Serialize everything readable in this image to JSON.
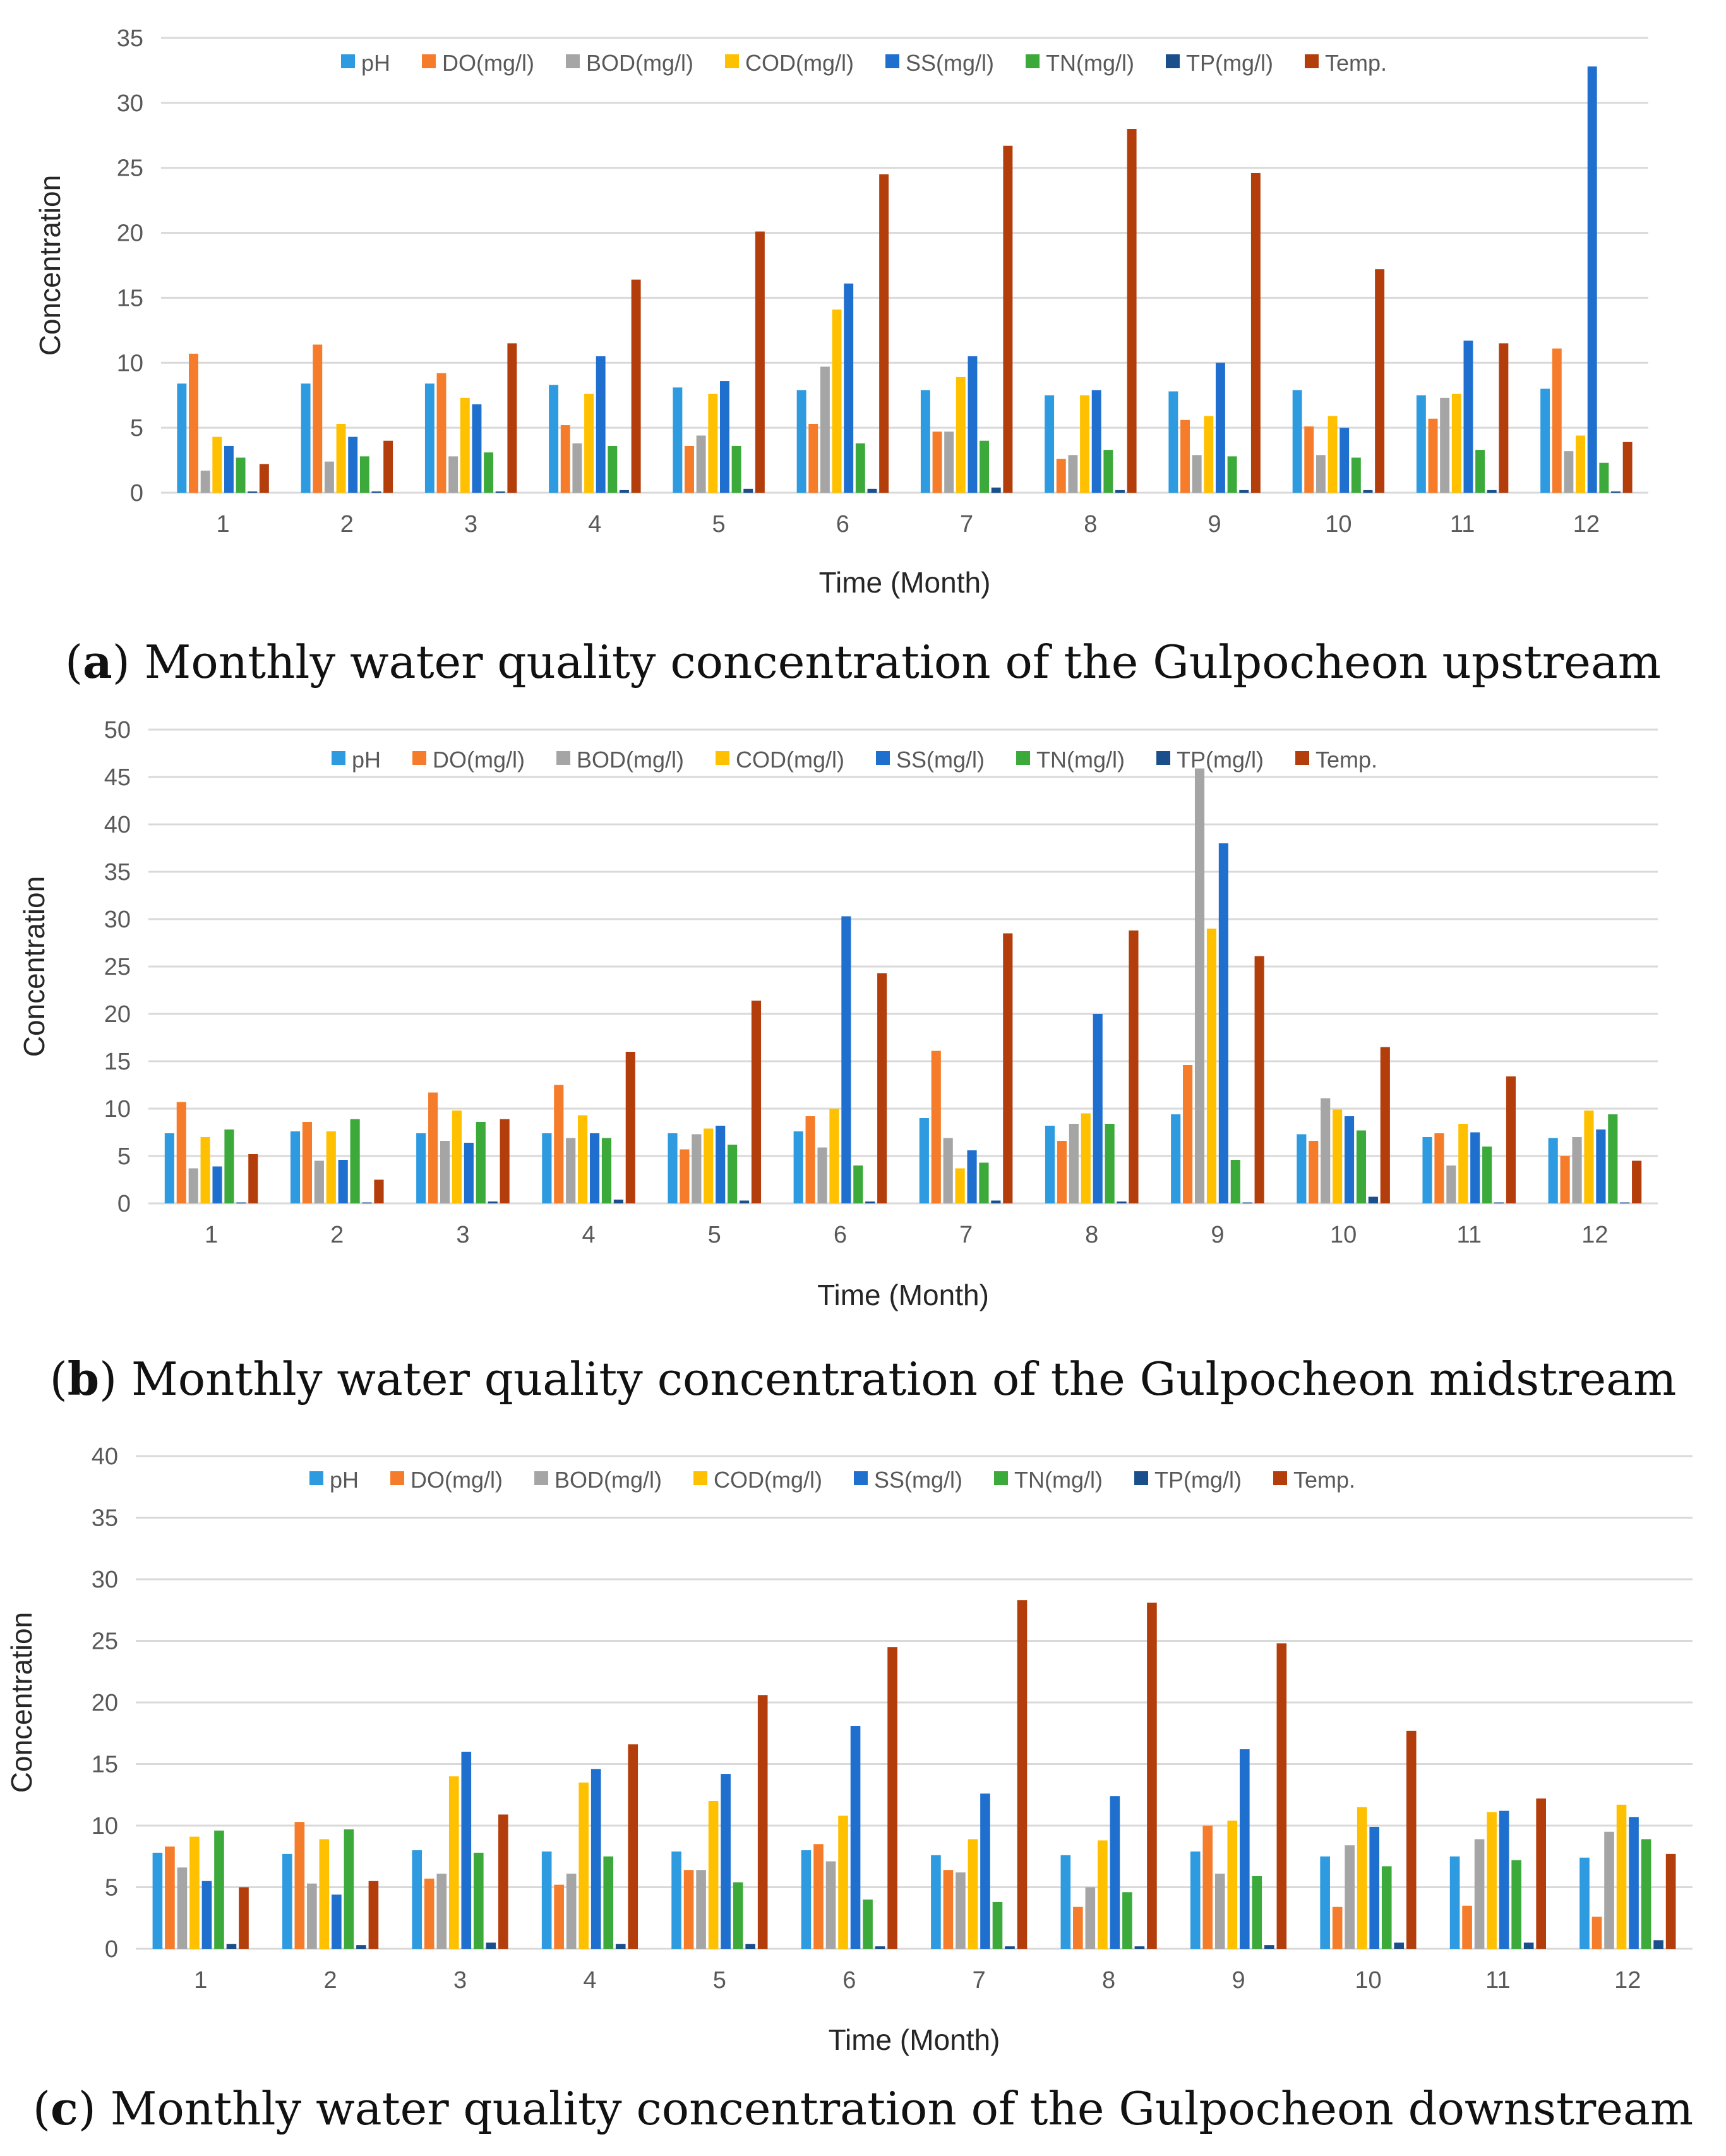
{
  "colors": {
    "pH": "#2E9BE0",
    "DO": "#F57C2A",
    "BOD": "#A5A5A5",
    "COD": "#FFC000",
    "SS": "#1F6FCF",
    "TN": "#3BAA3B",
    "TP": "#1A4F8B",
    "Temp": "#B33D0B",
    "grid": "#D9D9D9"
  },
  "chart_data": [
    {
      "type": "bar",
      "caption_label": "a",
      "caption_text": "Monthly water quality concentration of the Gulpocheon upstream",
      "xlabel": "Time (Month)",
      "ylabel": "Concentration",
      "ylim": [
        0,
        35
      ],
      "yticks": [
        0,
        5,
        10,
        15,
        20,
        25,
        30,
        35
      ],
      "categories": [
        "1",
        "2",
        "3",
        "4",
        "5",
        "6",
        "7",
        "8",
        "9",
        "10",
        "11",
        "12"
      ],
      "series": [
        {
          "name": "pH",
          "color_key": "pH",
          "values": [
            8.4,
            8.4,
            8.4,
            8.3,
            8.1,
            7.9,
            7.9,
            7.5,
            7.8,
            7.9,
            7.5,
            8.0
          ]
        },
        {
          "name": "DO(mg/l)",
          "color_key": "DO",
          "values": [
            10.7,
            11.4,
            9.2,
            5.2,
            3.6,
            5.3,
            4.7,
            2.6,
            5.6,
            5.1,
            5.7,
            11.1
          ]
        },
        {
          "name": "BOD(mg/l)",
          "color_key": "BOD",
          "values": [
            1.7,
            2.4,
            2.8,
            3.8,
            4.4,
            9.7,
            4.7,
            2.9,
            2.9,
            2.9,
            7.3,
            3.2
          ]
        },
        {
          "name": "COD(mg/l)",
          "color_key": "COD",
          "values": [
            4.3,
            5.3,
            7.3,
            7.6,
            7.6,
            14.1,
            8.9,
            7.5,
            5.9,
            5.9,
            7.6,
            4.4
          ]
        },
        {
          "name": "SS(mg/l)",
          "color_key": "SS",
          "values": [
            3.6,
            4.3,
            6.8,
            10.5,
            8.6,
            16.1,
            10.5,
            7.9,
            10.0,
            5.0,
            11.7,
            32.8
          ]
        },
        {
          "name": "TN(mg/l)",
          "color_key": "TN",
          "values": [
            2.7,
            2.8,
            3.1,
            3.6,
            3.6,
            3.8,
            4.0,
            3.3,
            2.8,
            2.7,
            3.3,
            2.3
          ]
        },
        {
          "name": "TP(mg/l)",
          "color_key": "TP",
          "values": [
            0.1,
            0.1,
            0.1,
            0.2,
            0.3,
            0.3,
            0.4,
            0.2,
            0.2,
            0.2,
            0.2,
            0.1
          ]
        },
        {
          "name": "Temp.",
          "color_key": "Temp",
          "values": [
            2.2,
            4.0,
            11.5,
            16.4,
            20.1,
            24.5,
            26.7,
            28.0,
            24.6,
            17.2,
            11.5,
            3.9
          ]
        }
      ]
    },
    {
      "type": "bar",
      "caption_label": "b",
      "caption_text": "Monthly water quality concentration of the Gulpocheon midstream",
      "xlabel": "Time (Month)",
      "ylabel": "Concentration",
      "ylim": [
        0,
        50
      ],
      "yticks": [
        0,
        5,
        10,
        15,
        20,
        25,
        30,
        35,
        40,
        45,
        50
      ],
      "categories": [
        "1",
        "2",
        "3",
        "4",
        "5",
        "6",
        "7",
        "8",
        "9",
        "10",
        "11",
        "12"
      ],
      "series": [
        {
          "name": "pH",
          "color_key": "pH",
          "values": [
            7.4,
            7.6,
            7.4,
            7.4,
            7.4,
            7.6,
            9.0,
            8.2,
            9.4,
            7.3,
            7.0,
            6.9
          ]
        },
        {
          "name": "DO(mg/l)",
          "color_key": "DO",
          "values": [
            10.7,
            8.6,
            11.7,
            12.5,
            5.7,
            9.2,
            16.1,
            6.6,
            14.6,
            6.6,
            7.4,
            5.0
          ]
        },
        {
          "name": "BOD(mg/l)",
          "color_key": "BOD",
          "values": [
            3.7,
            4.5,
            6.6,
            6.9,
            7.3,
            5.9,
            6.9,
            8.4,
            45.9,
            11.1,
            4.0,
            7.0
          ]
        },
        {
          "name": "COD(mg/l)",
          "color_key": "COD",
          "values": [
            7.0,
            7.6,
            9.8,
            9.3,
            7.9,
            10.0,
            3.7,
            9.5,
            29.0,
            9.9,
            8.4,
            9.8
          ]
        },
        {
          "name": "SS(mg/l)",
          "color_key": "SS",
          "values": [
            3.9,
            4.6,
            6.4,
            7.4,
            8.2,
            30.3,
            5.6,
            20.0,
            38.0,
            9.2,
            7.5,
            7.8
          ]
        },
        {
          "name": "TN(mg/l)",
          "color_key": "TN",
          "values": [
            7.8,
            8.9,
            8.6,
            6.9,
            6.2,
            4.0,
            4.3,
            8.4,
            4.6,
            7.7,
            6.0,
            9.4
          ]
        },
        {
          "name": "TP(mg/l)",
          "color_key": "TP",
          "values": [
            0.1,
            0.1,
            0.2,
            0.4,
            0.3,
            0.2,
            0.3,
            0.2,
            0.1,
            0.7,
            0.1,
            0.1
          ]
        },
        {
          "name": "Temp.",
          "color_key": "Temp",
          "values": [
            5.2,
            2.5,
            8.9,
            16.0,
            21.4,
            24.3,
            28.5,
            28.8,
            26.1,
            16.5,
            13.4,
            4.5
          ]
        }
      ]
    },
    {
      "type": "bar",
      "caption_label": "c",
      "caption_text": "Monthly water quality concentration of the Gulpocheon downstream",
      "xlabel": "Time (Month)",
      "ylabel": "Concentration",
      "ylim": [
        0,
        40
      ],
      "yticks": [
        0,
        5,
        10,
        15,
        20,
        25,
        30,
        35,
        40
      ],
      "categories": [
        "1",
        "2",
        "3",
        "4",
        "5",
        "6",
        "7",
        "8",
        "9",
        "10",
        "11",
        "12"
      ],
      "series": [
        {
          "name": "pH",
          "color_key": "pH",
          "values": [
            7.8,
            7.7,
            8.0,
            7.9,
            7.9,
            8.0,
            7.6,
            7.6,
            7.9,
            7.5,
            7.5,
            7.4
          ]
        },
        {
          "name": "DO(mg/l)",
          "color_key": "DO",
          "values": [
            8.3,
            10.3,
            5.7,
            5.2,
            6.4,
            8.5,
            6.4,
            3.4,
            10.0,
            3.4,
            3.5,
            2.6
          ]
        },
        {
          "name": "BOD(mg/l)",
          "color_key": "BOD",
          "values": [
            6.6,
            5.3,
            6.1,
            6.1,
            6.4,
            7.1,
            6.2,
            5.0,
            6.1,
            8.4,
            8.9,
            9.5
          ]
        },
        {
          "name": "COD(mg/l)",
          "color_key": "COD",
          "values": [
            9.1,
            8.9,
            14.0,
            13.5,
            12.0,
            10.8,
            8.9,
            8.8,
            10.4,
            11.5,
            11.1,
            11.7
          ]
        },
        {
          "name": "SS(mg/l)",
          "color_key": "SS",
          "values": [
            5.5,
            4.4,
            16.0,
            14.6,
            14.2,
            18.1,
            12.6,
            12.4,
            16.2,
            9.9,
            11.2,
            10.7
          ]
        },
        {
          "name": "TN(mg/l)",
          "color_key": "TN",
          "values": [
            9.6,
            9.7,
            7.8,
            7.5,
            5.4,
            4.0,
            3.8,
            4.6,
            5.9,
            6.7,
            7.2,
            8.9
          ]
        },
        {
          "name": "TP(mg/l)",
          "color_key": "TP",
          "values": [
            0.4,
            0.3,
            0.5,
            0.4,
            0.4,
            0.2,
            0.2,
            0.2,
            0.3,
            0.5,
            0.5,
            0.7
          ]
        },
        {
          "name": "Temp.",
          "color_key": "Temp",
          "values": [
            5.0,
            5.5,
            10.9,
            16.6,
            20.6,
            24.5,
            28.3,
            28.1,
            24.8,
            17.7,
            12.2,
            7.7
          ]
        }
      ]
    }
  ]
}
